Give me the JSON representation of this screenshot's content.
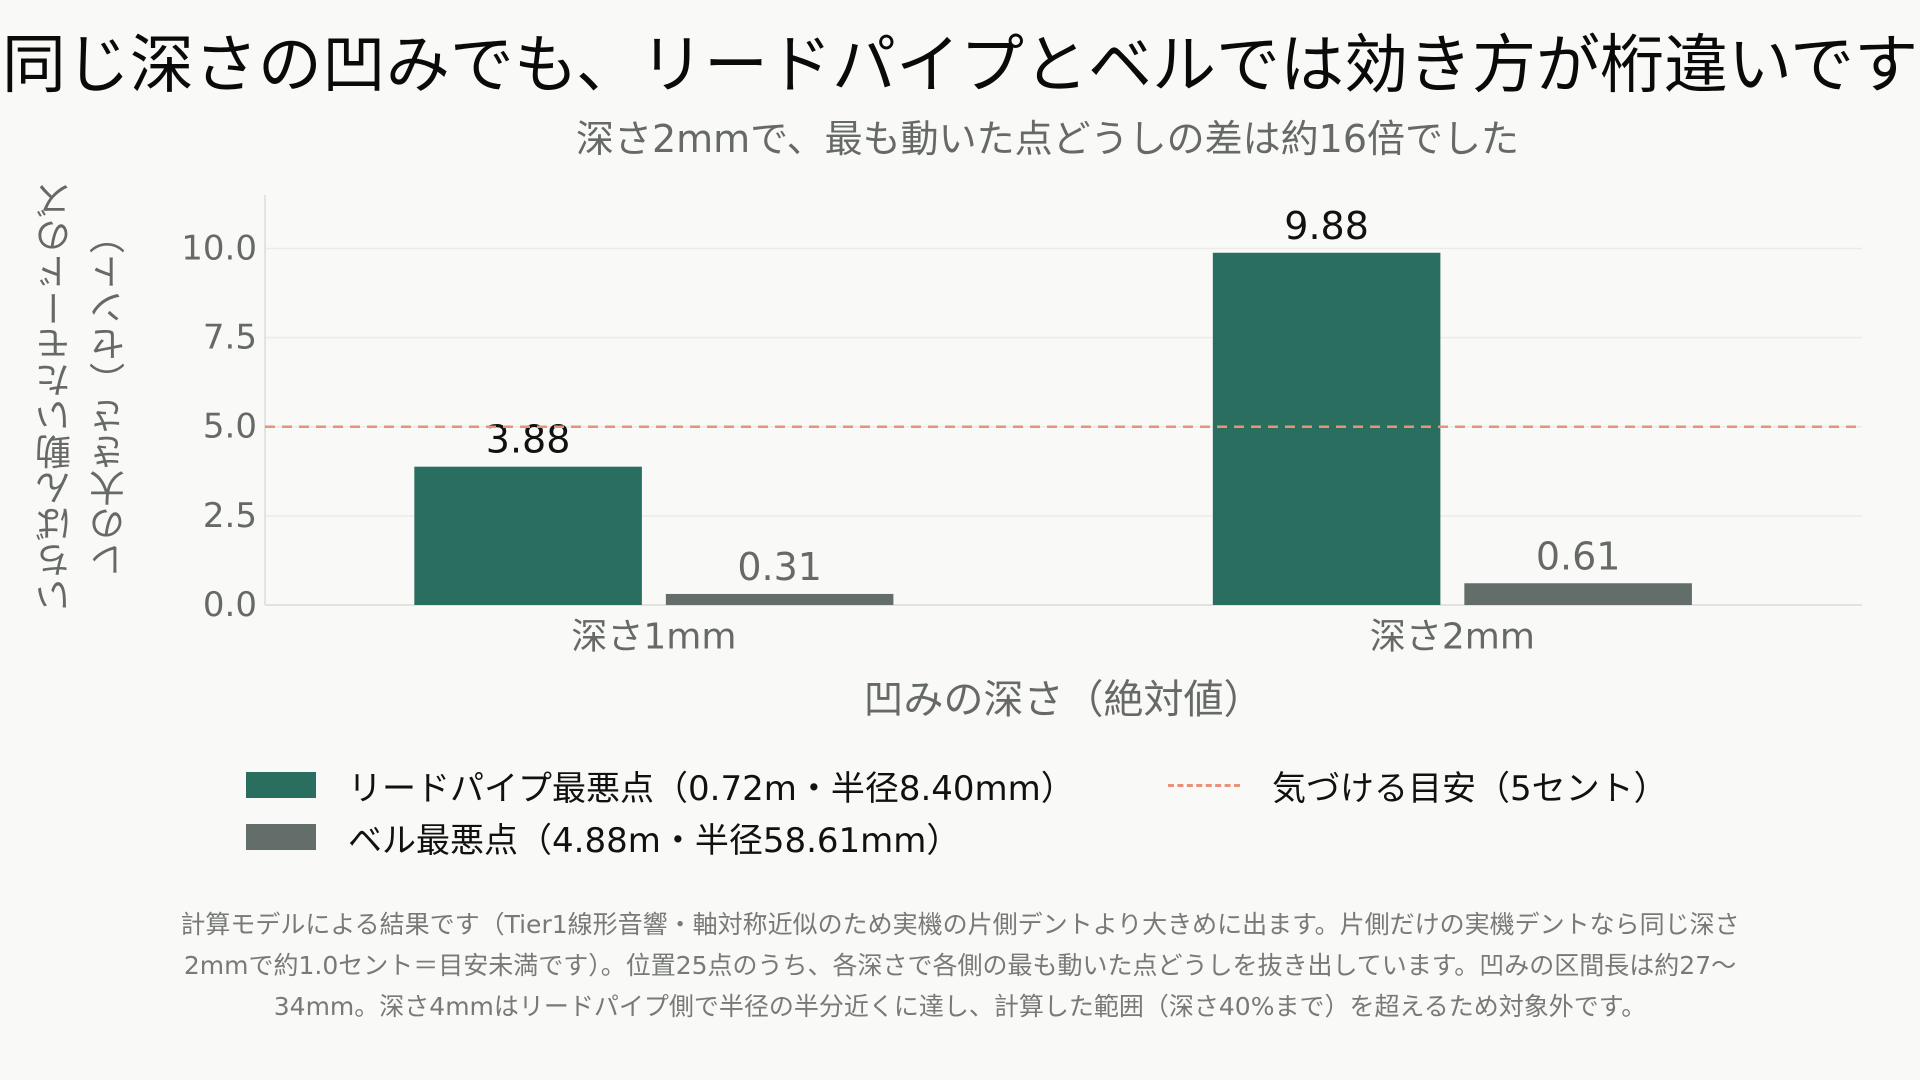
{
  "chart_data": {
    "type": "bar",
    "title": "同じ深さの凹みでも、リードパイプとベルでは効き方が桁違いです",
    "subtitle": "深さ2mmで、最も動いた点どうしの差は約16倍でした",
    "xlabel": "凹みの深さ（絶対値）",
    "ylabel": "いちばん動いたモードのズレの大きさ（セント）",
    "categories": [
      "深さ1mm",
      "深さ2mm"
    ],
    "series": [
      {
        "name": "リードパイプ最悪点（0.72m・半径8.40mm）",
        "values": [
          3.88,
          9.88
        ],
        "labels": [
          "3.88",
          "9.88"
        ],
        "color": "#2a6e60"
      },
      {
        "name": "ベル最悪点（4.88m・半径58.61mm）",
        "values": [
          0.31,
          0.61
        ],
        "labels": [
          "0.31",
          "0.61"
        ],
        "color": "#636e6a"
      }
    ],
    "reference_line": {
      "name": "気づける目安（5セント）",
      "value": 5.0,
      "color": "#e8927c",
      "style": "dashed"
    },
    "yticks": [
      0,
      2.5,
      5,
      7.5,
      10
    ],
    "ytick_labels": [
      "0.0",
      "2.5",
      "5.0",
      "7.5",
      "10.0"
    ],
    "ylim": [
      0,
      11.5
    ],
    "grid": "horizontal",
    "legend_position": "bottom"
  },
  "footnote": "計算モデルによる結果です（Tier1線形音響・軸対称近似のため実機の片側デントより大きめに出ます。片側だけの実機デントなら同じ深さ2mmで約1.0セント＝目安未満です）。位置25点のうち、各深さで各側の最も動いた点どうしを抜き出しています。凹みの区間長は約27〜34mm。深さ4mmはリードパイプ側で半径の半分近くに達し、計算した範囲（深さ40%まで）を超えるため対象外です。",
  "colors": {
    "leadpipe": "#2a6e60",
    "bell": "#636e6a",
    "threshold": "#e8927c",
    "grid": "#ebebe8",
    "background": "#f9f9f7"
  }
}
